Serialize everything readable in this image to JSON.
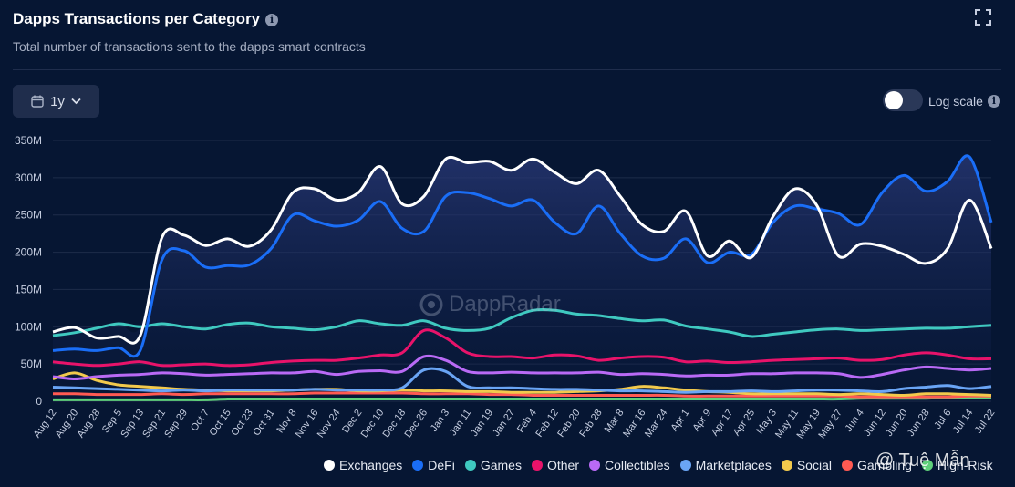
{
  "header": {
    "title": "Dapps Transactions per Category",
    "subtitle": "Total number of transactions sent to the dapps smart contracts"
  },
  "controls": {
    "range_label": "1y",
    "log_scale_label": "Log scale",
    "log_scale_on": false
  },
  "watermark": {
    "logo_text": "DappRadar",
    "overlay_text": "@ Tuệ Mẫn"
  },
  "chart_data": {
    "type": "area",
    "grid": true,
    "legend_position": "bottom-right",
    "ylim": [
      0,
      350000000
    ],
    "y_tick_labels": [
      "0",
      "50M",
      "100M",
      "150M",
      "200M",
      "250M",
      "300M",
      "350M"
    ],
    "x_tick_labels": [
      "Aug 12",
      "Aug 20",
      "Aug 28",
      "Sep 5",
      "Sep 13",
      "Sep 21",
      "Sep 29",
      "Oct 7",
      "Oct 15",
      "Oct 23",
      "Oct 31",
      "Nov 8",
      "Nov 16",
      "Nov 24",
      "Dec 2",
      "Dec 10",
      "Dec 18",
      "Dec 26",
      "Jan 3",
      "Jan 11",
      "Jan 19",
      "Jan 27",
      "Feb 4",
      "Feb 12",
      "Feb 20",
      "Feb 28",
      "Mar 8",
      "Mar 16",
      "Mar 24",
      "Apr 1",
      "Apr 9",
      "Apr 17",
      "Apr 25",
      "May 3",
      "May 11",
      "May 19",
      "May 27",
      "Jun 4",
      "Jun 12",
      "Jun 20",
      "Jun 28",
      "Jul 6",
      "Jul 14",
      "Jul 22"
    ],
    "series": [
      {
        "name": "Exchanges",
        "color": "#ffffff",
        "values": [
          93,
          99,
          85,
          87,
          88,
          220,
          223,
          209,
          218,
          208,
          230,
          280,
          285,
          270,
          280,
          315,
          265,
          275,
          325,
          320,
          322,
          310,
          325,
          307,
          292,
          310,
          275,
          237,
          228,
          255,
          195,
          215,
          193,
          248,
          285,
          263,
          195,
          211,
          208,
          197,
          185,
          205,
          270,
          205
        ]
      },
      {
        "name": "DeFi",
        "color": "#1a6ef7",
        "values": [
          68,
          70,
          68,
          72,
          68,
          190,
          202,
          180,
          182,
          183,
          205,
          250,
          242,
          235,
          243,
          268,
          232,
          228,
          275,
          280,
          272,
          262,
          270,
          240,
          225,
          262,
          225,
          195,
          192,
          218,
          186,
          200,
          197,
          240,
          262,
          258,
          252,
          237,
          280,
          303,
          282,
          295,
          328,
          240
        ]
      },
      {
        "name": "Games",
        "color": "#3fc9c0",
        "values": [
          88,
          92,
          98,
          104,
          100,
          104,
          100,
          97,
          103,
          105,
          100,
          98,
          96,
          100,
          108,
          104,
          102,
          108,
          98,
          95,
          98,
          112,
          122,
          122,
          117,
          115,
          111,
          108,
          109,
          101,
          97,
          93,
          87,
          90,
          93,
          96,
          97,
          95,
          96,
          97,
          98,
          98,
          100,
          102
        ]
      },
      {
        "name": "Other",
        "color": "#e8136a",
        "values": [
          53,
          50,
          48,
          50,
          53,
          48,
          49,
          50,
          48,
          49,
          52,
          54,
          55,
          55,
          58,
          62,
          65,
          95,
          85,
          65,
          60,
          60,
          58,
          62,
          61,
          55,
          58,
          60,
          59,
          53,
          54,
          52,
          53,
          55,
          56,
          57,
          58,
          55,
          56,
          62,
          65,
          62,
          57,
          57
        ]
      },
      {
        "name": "Collectibles",
        "color": "#b96af5",
        "values": [
          33,
          30,
          33,
          35,
          36,
          38,
          37,
          35,
          36,
          37,
          38,
          38,
          40,
          36,
          40,
          41,
          40,
          60,
          55,
          40,
          38,
          39,
          38,
          38,
          38,
          39,
          36,
          37,
          36,
          34,
          35,
          35,
          37,
          37,
          38,
          38,
          37,
          32,
          36,
          42,
          46,
          44,
          42,
          44
        ]
      },
      {
        "name": "Marketplaces",
        "color": "#6aa5f5",
        "values": [
          19,
          18,
          17,
          16,
          15,
          14,
          15,
          14,
          15,
          15,
          15,
          15,
          16,
          15,
          15,
          15,
          18,
          42,
          40,
          20,
          18,
          18,
          17,
          16,
          16,
          15,
          14,
          14,
          13,
          12,
          13,
          13,
          14,
          13,
          14,
          15,
          15,
          14,
          13,
          17,
          19,
          21,
          17,
          20
        ]
      },
      {
        "name": "Social",
        "color": "#f2c94c",
        "values": [
          30,
          38,
          28,
          22,
          20,
          18,
          16,
          15,
          14,
          14,
          14,
          15,
          16,
          16,
          14,
          14,
          15,
          14,
          14,
          13,
          13,
          12,
          12,
          12,
          13,
          14,
          16,
          20,
          18,
          15,
          13,
          12,
          10,
          10,
          10,
          10,
          9,
          10,
          9,
          8,
          10,
          10,
          9,
          8
        ]
      },
      {
        "name": "Gambling",
        "color": "#ff5a52",
        "values": [
          10,
          10,
          9,
          9,
          9,
          10,
          9,
          10,
          10,
          10,
          10,
          10,
          11,
          11,
          11,
          11,
          11,
          10,
          10,
          10,
          9,
          9,
          8,
          8,
          8,
          8,
          8,
          8,
          8,
          7,
          7,
          7,
          7,
          7,
          7,
          7,
          7,
          6,
          6,
          6,
          6,
          6,
          7,
          7
        ]
      },
      {
        "name": "High-Risk",
        "color": "#5fd07a",
        "values": [
          2,
          2,
          2,
          2,
          2,
          2,
          2,
          2,
          3,
          3,
          3,
          3,
          3,
          3,
          3,
          3,
          3,
          3,
          3,
          3,
          3,
          3,
          3,
          3,
          3,
          3,
          3,
          3,
          3,
          3,
          3,
          3,
          3,
          3,
          3,
          3,
          3,
          4,
          4,
          4,
          4,
          5,
          5,
          5
        ]
      }
    ]
  }
}
